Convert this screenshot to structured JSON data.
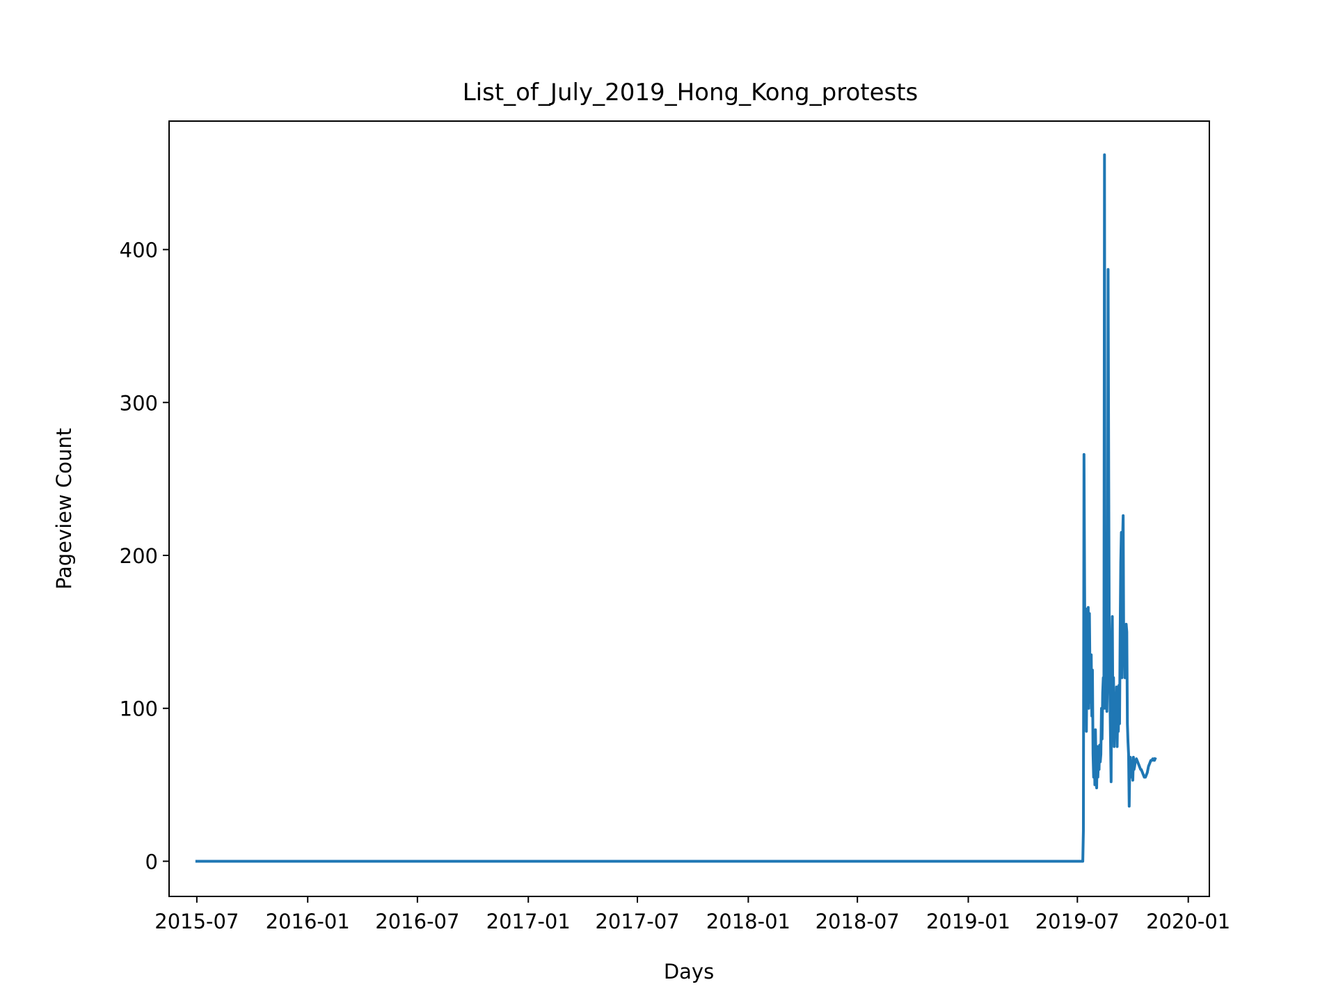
{
  "chart_data": {
    "type": "line",
    "title": "List_of_July_2019_Hong_Kong_protests",
    "xlabel": "Days",
    "ylabel": "Pageview Count",
    "xlim": [
      "2015-05-16",
      "2020-02-05"
    ],
    "ylim": [
      -23,
      484
    ],
    "x_ticks": [
      "2015-07-01",
      "2016-01-01",
      "2016-07-01",
      "2017-01-01",
      "2017-07-01",
      "2018-01-01",
      "2018-07-01",
      "2019-01-01",
      "2019-07-01",
      "2020-01-01"
    ],
    "x_tick_labels": [
      "2015-07",
      "2016-01",
      "2016-07",
      "2017-01",
      "2017-07",
      "2018-01",
      "2018-07",
      "2019-01",
      "2019-07",
      "2020-01"
    ],
    "y_ticks": [
      0,
      100,
      200,
      300,
      400
    ],
    "y_tick_labels": [
      "0",
      "100",
      "200",
      "300",
      "400"
    ],
    "grid": false,
    "series": [
      {
        "color": "#1f77b4",
        "x": [
          "2015-07-01",
          "2019-07-10",
          "2019-07-11",
          "2019-07-12",
          "2019-07-13",
          "2019-07-14",
          "2019-07-15",
          "2019-07-16",
          "2019-07-17",
          "2019-07-18",
          "2019-07-19",
          "2019-07-20",
          "2019-07-21",
          "2019-07-22",
          "2019-07-23",
          "2019-07-24",
          "2019-07-25",
          "2019-07-26",
          "2019-07-27",
          "2019-07-28",
          "2019-07-29",
          "2019-07-30",
          "2019-07-31",
          "2019-08-01",
          "2019-08-02",
          "2019-08-03",
          "2019-08-04",
          "2019-08-05",
          "2019-08-06",
          "2019-08-07",
          "2019-08-08",
          "2019-08-09",
          "2019-08-10",
          "2019-08-11",
          "2019-08-12",
          "2019-08-13",
          "2019-08-14",
          "2019-08-15",
          "2019-08-16",
          "2019-08-17",
          "2019-08-18",
          "2019-08-19",
          "2019-08-20",
          "2019-08-21",
          "2019-08-22",
          "2019-08-23",
          "2019-08-24",
          "2019-08-25",
          "2019-08-26",
          "2019-08-27",
          "2019-08-28",
          "2019-08-29",
          "2019-08-30",
          "2019-08-31",
          "2019-09-01",
          "2019-09-02",
          "2019-09-03",
          "2019-09-04",
          "2019-09-05",
          "2019-09-06",
          "2019-09-07",
          "2019-09-08",
          "2019-09-09",
          "2019-09-10",
          "2019-09-11",
          "2019-09-12",
          "2019-09-13",
          "2019-09-14",
          "2019-09-15",
          "2019-09-16",
          "2019-09-17",
          "2019-09-18",
          "2019-09-19",
          "2019-09-20",
          "2019-09-21",
          "2019-09-22",
          "2019-09-23",
          "2019-09-24",
          "2019-09-25",
          "2019-09-26",
          "2019-09-27",
          "2019-09-28",
          "2019-09-29",
          "2019-09-30",
          "2019-10-01",
          "2019-10-02",
          "2019-10-03",
          "2019-10-04",
          "2019-10-05",
          "2019-10-06",
          "2019-10-07",
          "2019-10-08",
          "2019-10-09",
          "2019-10-10",
          "2019-10-11",
          "2019-10-12",
          "2019-10-13",
          "2019-10-14",
          "2019-10-15",
          "2019-10-16",
          "2019-10-17",
          "2019-10-18",
          "2019-10-19",
          "2019-10-20",
          "2019-10-21",
          "2019-10-22",
          "2019-10-23",
          "2019-10-24",
          "2019-10-25",
          "2019-10-26",
          "2019-10-27",
          "2019-10-28",
          "2019-10-29",
          "2019-10-30",
          "2019-10-31",
          "2019-11-01",
          "2019-11-02",
          "2019-11-03",
          "2019-11-04",
          "2019-11-05",
          "2019-11-06",
          "2019-11-07"
        ],
        "values": [
          0,
          0,
          20,
          266,
          180,
          100,
          165,
          85,
          155,
          110,
          166,
          100,
          162,
          120,
          104,
          135,
          95,
          125,
          70,
          55,
          80,
          50,
          86,
          60,
          48,
          75,
          55,
          67,
          60,
          76,
          65,
          70,
          100,
          80,
          110,
          120,
          100,
          462,
          110,
          100,
          140,
          98,
          130,
          387,
          250,
          140,
          110,
          80,
          52,
          140,
          160,
          90,
          120,
          75,
          100,
          110,
          85,
          114,
          75,
          100,
          85,
          115,
          90,
          150,
          195,
          215,
          120,
          210,
          226,
          130,
          145,
          120,
          150,
          155,
          150,
          90,
          78,
          70,
          36,
          65,
          68,
          60,
          55,
          65,
          53,
          68,
          60,
          62,
          65,
          66,
          67,
          66,
          65,
          64,
          63,
          62,
          61,
          60,
          60,
          59,
          58,
          57,
          56,
          55,
          55,
          55,
          56,
          57,
          58,
          60,
          62,
          63,
          64,
          65,
          66,
          66,
          66,
          67,
          67,
          66,
          66,
          67
        ]
      }
    ]
  }
}
